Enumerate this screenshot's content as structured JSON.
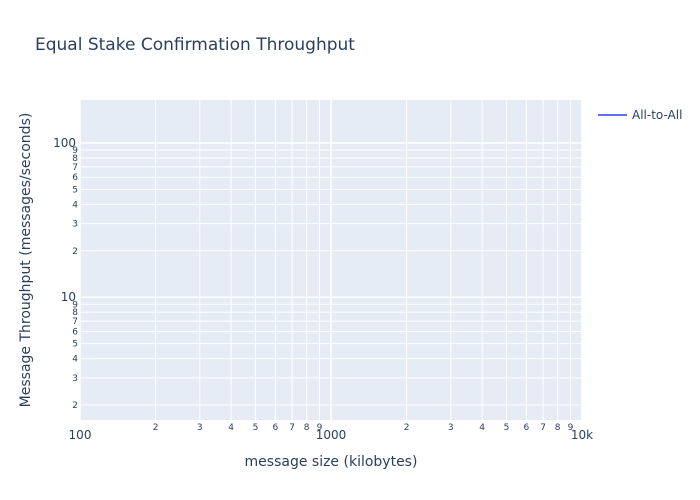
{
  "chart_data": {
    "type": "line",
    "title": "Equal Stake Confirmation Throughput",
    "xlabel": "message size (kilobytes)",
    "ylabel": "Message Throughput (messages/seconds)",
    "xscale": "log",
    "yscale": "log",
    "xlim": [
      100,
      10000
    ],
    "ylim": [
      1.6,
      190
    ],
    "x_major_ticks": [
      {
        "value": 100,
        "label": "100"
      },
      {
        "value": 1000,
        "label": "1000"
      },
      {
        "value": 10000,
        "label": "10k"
      }
    ],
    "x_minor_ticks": [
      {
        "value": 200,
        "label": "2"
      },
      {
        "value": 300,
        "label": "3"
      },
      {
        "value": 400,
        "label": "4"
      },
      {
        "value": 500,
        "label": "5"
      },
      {
        "value": 600,
        "label": "6"
      },
      {
        "value": 700,
        "label": "7"
      },
      {
        "value": 800,
        "label": "8"
      },
      {
        "value": 900,
        "label": "9"
      },
      {
        "value": 2000,
        "label": "2"
      },
      {
        "value": 3000,
        "label": "3"
      },
      {
        "value": 4000,
        "label": "4"
      },
      {
        "value": 5000,
        "label": "5"
      },
      {
        "value": 6000,
        "label": "6"
      },
      {
        "value": 7000,
        "label": "7"
      },
      {
        "value": 8000,
        "label": "8"
      },
      {
        "value": 9000,
        "label": "9"
      }
    ],
    "y_major_ticks": [
      {
        "value": 10,
        "label": "10"
      },
      {
        "value": 100,
        "label": "100"
      }
    ],
    "y_minor_ticks": [
      {
        "value": 2,
        "label": "2"
      },
      {
        "value": 3,
        "label": "3"
      },
      {
        "value": 4,
        "label": "4"
      },
      {
        "value": 5,
        "label": "5"
      },
      {
        "value": 6,
        "label": "6"
      },
      {
        "value": 7,
        "label": "7"
      },
      {
        "value": 8,
        "label": "8"
      },
      {
        "value": 9,
        "label": "9"
      },
      {
        "value": 20,
        "label": "2"
      },
      {
        "value": 30,
        "label": "3"
      },
      {
        "value": 40,
        "label": "4"
      },
      {
        "value": 50,
        "label": "5"
      },
      {
        "value": 60,
        "label": "6"
      },
      {
        "value": 70,
        "label": "7"
      },
      {
        "value": 80,
        "label": "8"
      },
      {
        "value": 90,
        "label": "9"
      }
    ],
    "series": [
      {
        "name": "All-to-All",
        "color": "#636efa",
        "x": [],
        "y": []
      }
    ],
    "grid": true,
    "legend_position": "top-right",
    "colors": {
      "plot_bg": "#e5ecf6",
      "grid": "#ffffff",
      "text": "#2a3f5f"
    }
  }
}
